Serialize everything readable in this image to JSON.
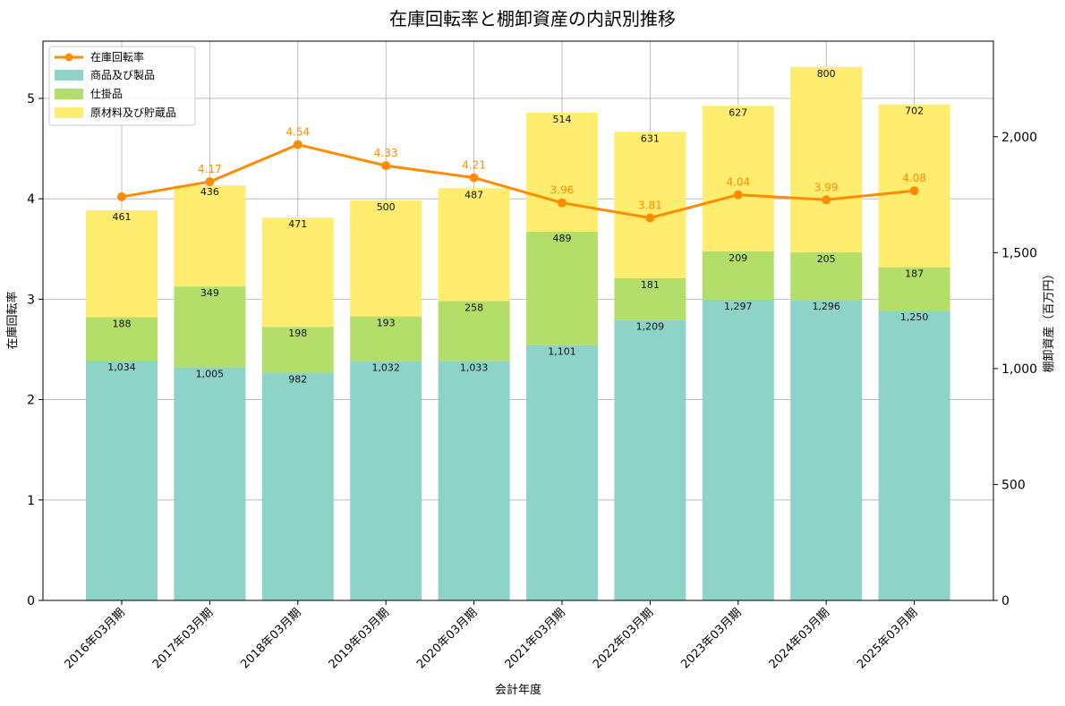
{
  "chart_data": {
    "type": "bar",
    "title": "在庫回転率と棚卸資産の内訳別推移",
    "xlabel": "会計年度",
    "ylabel_left": "在庫回転率",
    "ylabel_right": "棚卸資産（百万円）",
    "categories": [
      "2016年03月期",
      "2017年03月期",
      "2018年03月期",
      "2019年03月期",
      "2020年03月期",
      "2021年03月期",
      "2022年03月期",
      "2023年03月期",
      "2024年03月期",
      "2025年03月期"
    ],
    "stacked": true,
    "grid": true,
    "legend_position": "top-left",
    "y_left_lim": [
      0,
      5.57
    ],
    "y_right_lim": [
      0,
      2412
    ],
    "y_left_ticks": [
      0,
      1,
      2,
      3,
      4,
      5
    ],
    "y_right_ticks": [
      0,
      500,
      1000,
      1500,
      2000
    ],
    "y_right_tick_labels": [
      "0",
      "500",
      "1,000",
      "1,500",
      "2,000"
    ],
    "series": [
      {
        "name": "商品及び製品",
        "color": "#8dd3c7",
        "values": [
          1034,
          1005,
          982,
          1032,
          1033,
          1101,
          1209,
          1297,
          1296,
          1250
        ],
        "labels": [
          "1,034",
          "1,005",
          "982",
          "1,032",
          "1,033",
          "1,101",
          "1,209",
          "1,297",
          "1,296",
          "1,250"
        ]
      },
      {
        "name": "仕掛品",
        "color": "#b3de69",
        "values": [
          188,
          349,
          198,
          193,
          258,
          489,
          181,
          209,
          205,
          187
        ],
        "labels": [
          "188",
          "349",
          "198",
          "193",
          "258",
          "489",
          "181",
          "209",
          "205",
          "187"
        ]
      },
      {
        "name": "原材料及び貯蔵品",
        "color": "#ffed6f",
        "values": [
          461,
          436,
          471,
          500,
          487,
          514,
          631,
          627,
          800,
          702
        ],
        "labels": [
          "461",
          "436",
          "471",
          "500",
          "487",
          "514",
          "631",
          "627",
          "800",
          "702"
        ]
      }
    ],
    "line": {
      "name": "在庫回転率",
      "color": "#ff8c00",
      "values": [
        4.02,
        4.17,
        4.54,
        4.33,
        4.21,
        3.96,
        3.81,
        4.04,
        3.99,
        4.08
      ],
      "labels": [
        "",
        "4.17",
        "4.54",
        "4.33",
        "4.21",
        "3.96",
        "3.81",
        "4.04",
        "3.99",
        "4.08"
      ]
    }
  }
}
